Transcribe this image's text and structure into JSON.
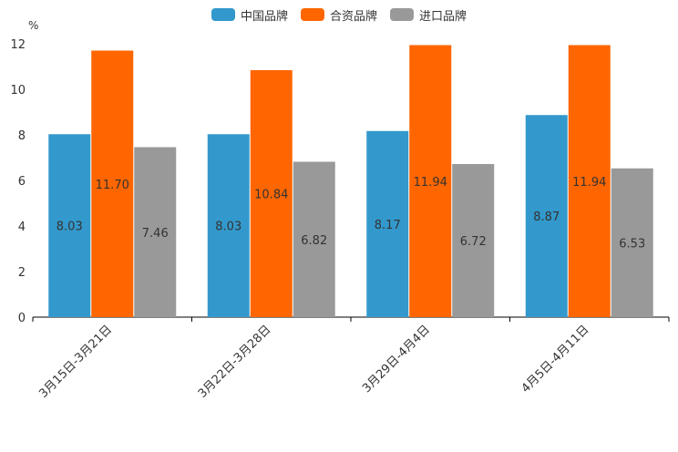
{
  "chart_data": {
    "type": "bar",
    "unit_label": "%",
    "categories": [
      "3月15日-3月21日",
      "3月22日-3月28日",
      "3月29日-4月4日",
      "4月5日-4月11日"
    ],
    "series": [
      {
        "name": "中国品牌",
        "color": "#3399CC",
        "values": [
          8.03,
          8.03,
          8.17,
          8.87
        ],
        "labels": [
          "8.03",
          "8.03",
          "8.17",
          "8.87"
        ]
      },
      {
        "name": "合资品牌",
        "color": "#FF6600",
        "values": [
          11.7,
          10.84,
          11.94,
          11.94
        ],
        "labels": [
          "11.70",
          "10.84",
          "11.94",
          "11.94"
        ]
      },
      {
        "name": "进口品牌",
        "color": "#999999",
        "values": [
          7.46,
          6.82,
          6.72,
          6.53
        ],
        "labels": [
          "7.46",
          "6.82",
          "6.72",
          "6.53"
        ]
      }
    ],
    "ylim": [
      0,
      12
    ],
    "yticks": [
      0,
      2,
      4,
      6,
      8,
      10,
      12
    ],
    "legend_position": "top-center",
    "grid": false
  }
}
